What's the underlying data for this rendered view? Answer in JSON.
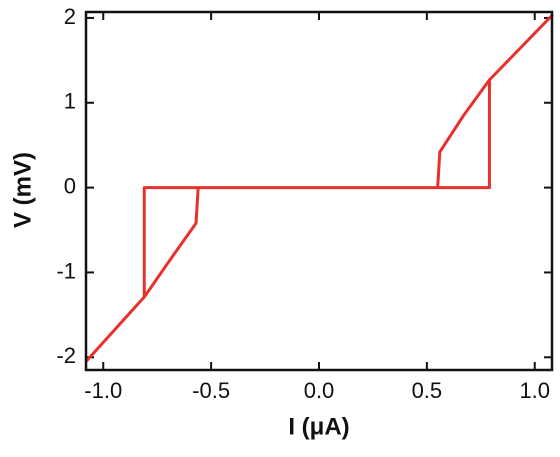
{
  "chart_data": {
    "type": "line",
    "xlabel": "I (μA)",
    "ylabel": "V (mV)",
    "x": [
      -1.08,
      -0.81,
      -0.81,
      0.79,
      0.79,
      1.08,
      0.79,
      0.67,
      0.56,
      0.55,
      -0.56,
      -0.57,
      -0.69,
      -0.81,
      -1.08
    ],
    "series": [
      {
        "color": "#e8302c",
        "values": [
          -2.05,
          -1.29,
          0,
          0,
          1.27,
          2.03,
          1.27,
          0.85,
          0.42,
          0,
          0,
          -0.42,
          -0.85,
          -1.29,
          -2.05
        ]
      }
    ],
    "xlim": [
      -1.08,
      1.08
    ],
    "ylim": [
      -2.15,
      2.07
    ],
    "xticks": [
      {
        "value": -1,
        "label": "-1.0"
      },
      {
        "value": -0.5,
        "label": "-0.5"
      },
      {
        "value": 0,
        "label": "0.0"
      },
      {
        "value": 0.5,
        "label": "0.5"
      },
      {
        "value": 1,
        "label": "1.0"
      }
    ],
    "yticks": [
      -2,
      -1,
      0,
      1,
      2
    ]
  }
}
